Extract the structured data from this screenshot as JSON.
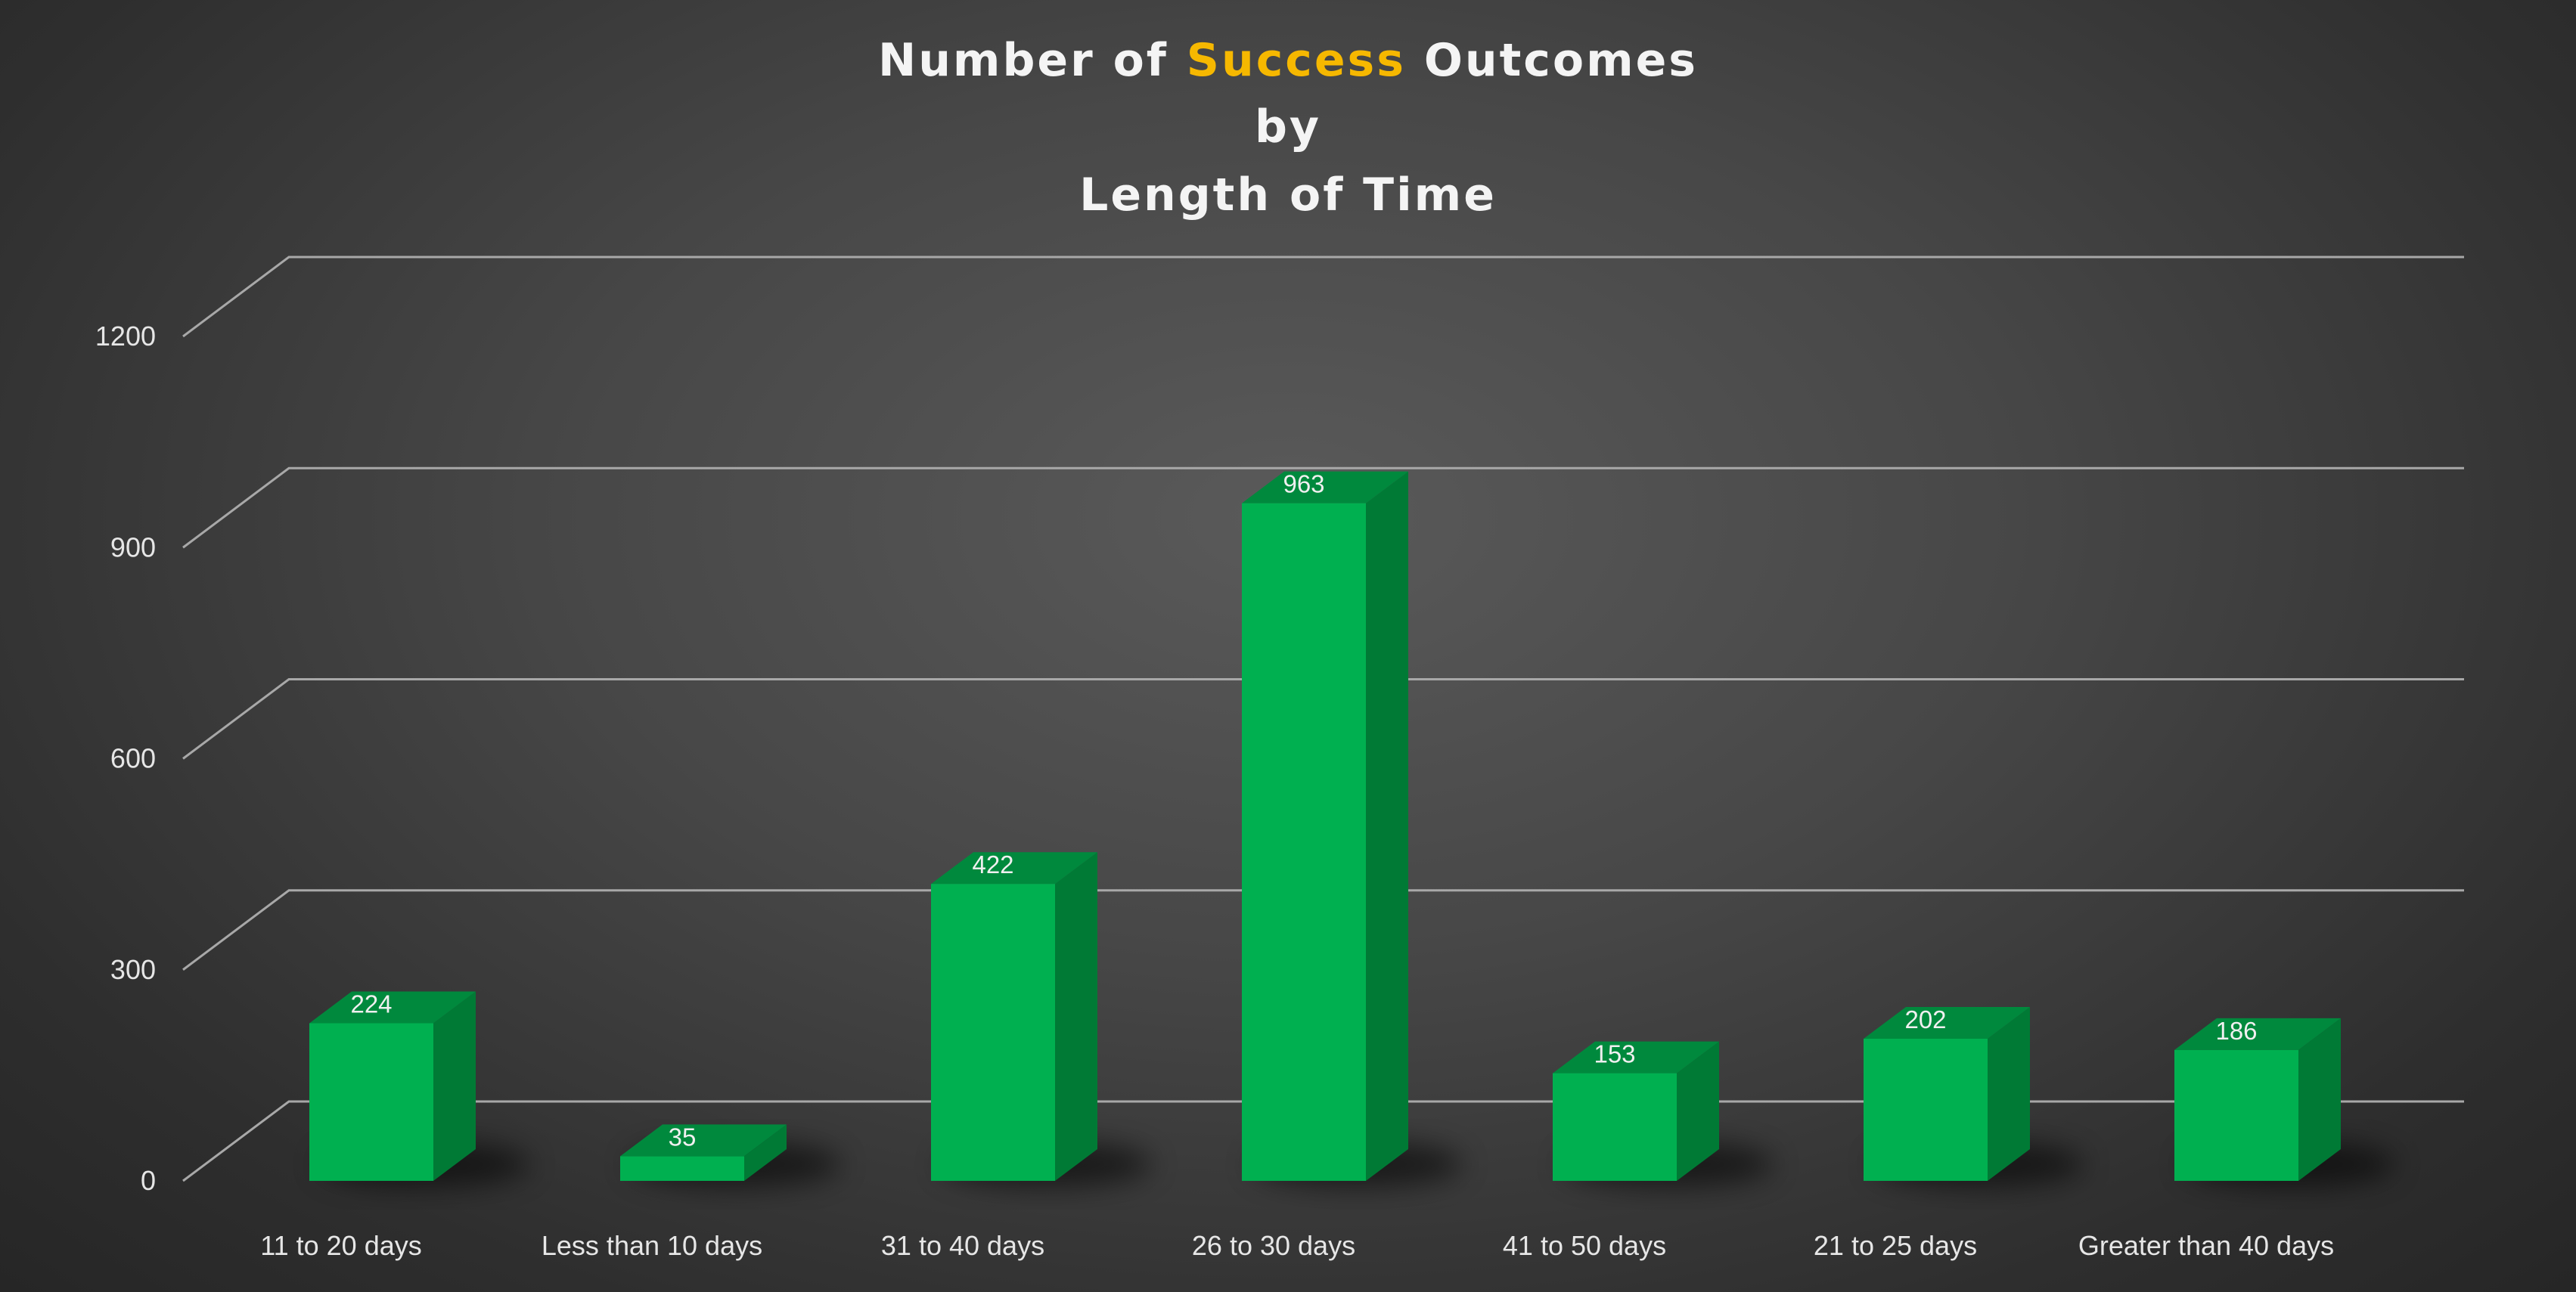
{
  "chart_data": {
    "type": "bar",
    "style": "3d-column",
    "title_parts": [
      "Number of ",
      "Success",
      " Outcomes"
    ],
    "title_line2": "by",
    "title_line3": "Length of Time",
    "categories": [
      "11 to 20 days",
      "Less than 10 days",
      "31 to 40 days",
      "26 to 30 days",
      "41 to 50 days",
      "21 to 25 days",
      "Greater than 40 days"
    ],
    "values": [
      224,
      35,
      422,
      963,
      153,
      202,
      186
    ],
    "yticks": [
      0,
      300,
      600,
      900,
      1200
    ],
    "ylim": [
      0,
      1200
    ],
    "grid": true,
    "legend": "none",
    "colors": {
      "bar_front": "#00b050",
      "bar_side": "#007a35",
      "bar_top": "#00893d",
      "title_highlight": "#f6b800",
      "title": "#f4f4f4"
    }
  }
}
